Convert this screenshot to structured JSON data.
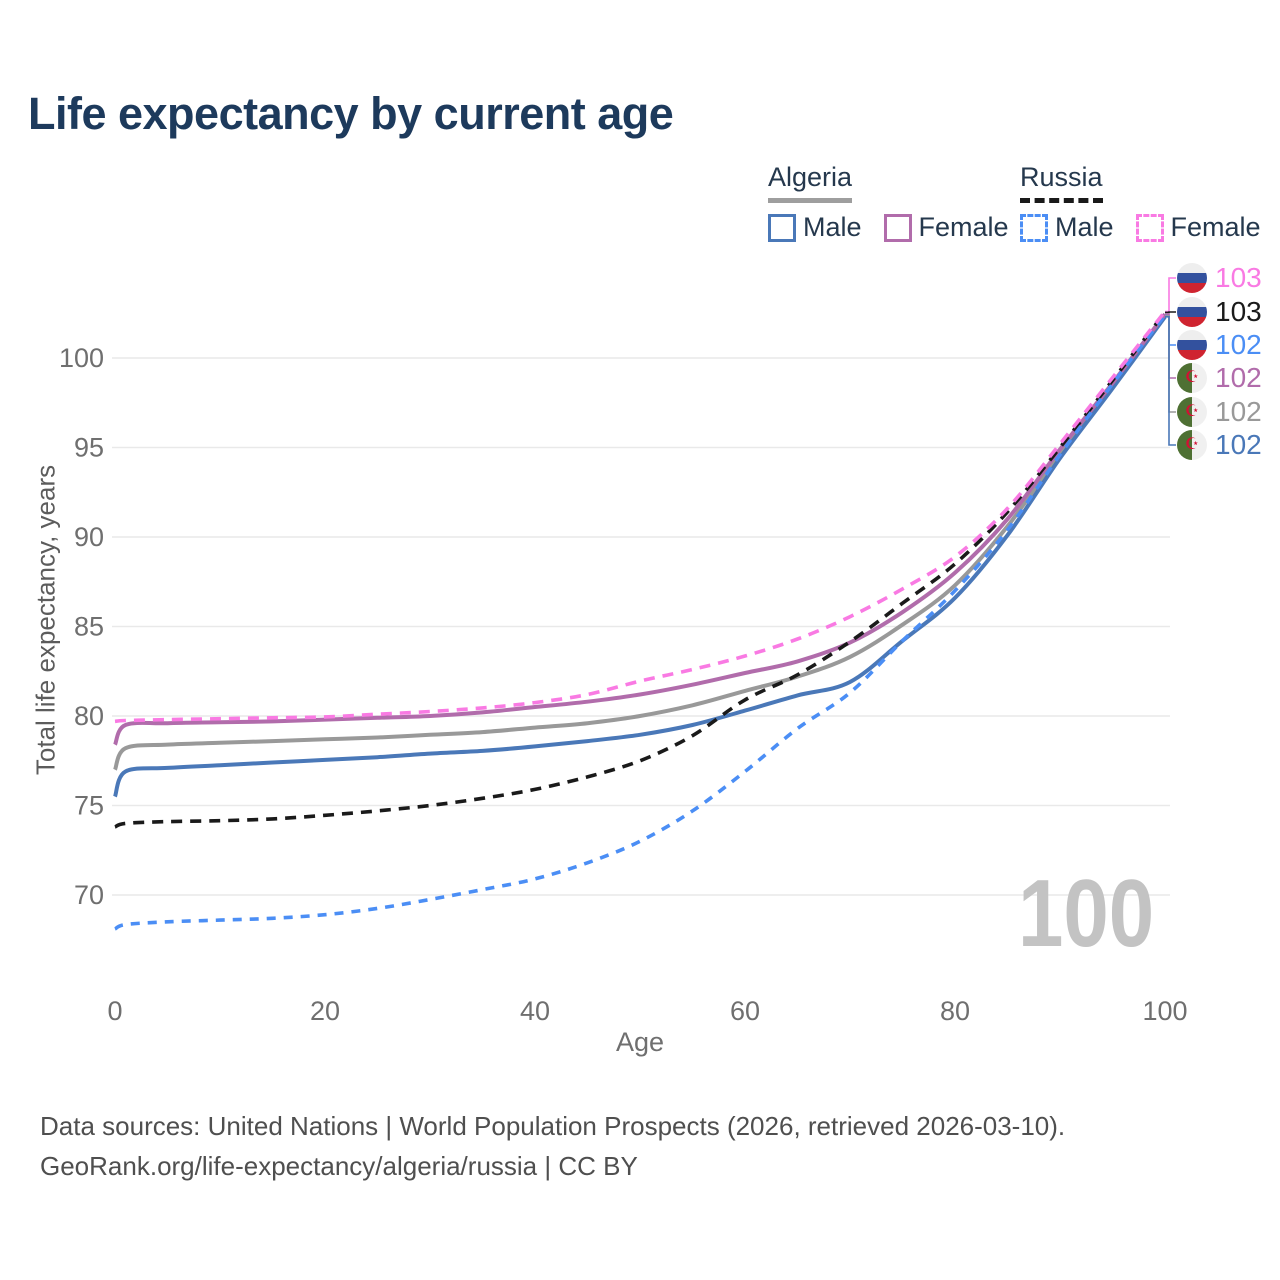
{
  "title": "Life expectancy by current age",
  "legend": {
    "groups": [
      {
        "country": "Algeria",
        "line_style": "solid",
        "underline_color": "#9e9e9e",
        "items": [
          {
            "label": "Male",
            "color": "#4a78b8",
            "dashed": false
          },
          {
            "label": "Female",
            "color": "#b16cab",
            "dashed": false
          }
        ]
      },
      {
        "country": "Russia",
        "line_style": "dashed",
        "underline_color": "#1a1a1a",
        "items": [
          {
            "label": "Male",
            "color": "#4b8ef5",
            "dashed": true
          },
          {
            "label": "Female",
            "color": "#f97ae3",
            "dashed": true
          }
        ]
      }
    ]
  },
  "chart_data": {
    "type": "line",
    "title": "Life expectancy by current age",
    "xlabel": "Age",
    "ylabel": "Total life expectancy, years",
    "xlim": [
      0,
      100
    ],
    "ylim": [
      66,
      104
    ],
    "xticks": [
      0,
      20,
      40,
      60,
      80,
      100
    ],
    "yticks": [
      70,
      75,
      80,
      85,
      90,
      95,
      100
    ],
    "grid": "horizontal-only",
    "current_age_watermark": "100",
    "x": [
      0,
      1,
      5,
      10,
      15,
      20,
      25,
      30,
      35,
      40,
      45,
      50,
      55,
      60,
      65,
      70,
      75,
      80,
      85,
      90,
      95,
      100
    ],
    "series": [
      {
        "name": "Algeria Both sexes",
        "country": "Algeria",
        "sex": "Both",
        "color": "#999999",
        "dash": null,
        "width": 4,
        "values": [
          77.0,
          78.2,
          78.4,
          78.5,
          78.6,
          78.7,
          78.8,
          78.95,
          79.1,
          79.35,
          79.6,
          80.0,
          80.6,
          81.4,
          82.2,
          83.3,
          85.1,
          87.3,
          90.6,
          94.7,
          98.5,
          102.35
        ]
      },
      {
        "name": "Algeria Male",
        "country": "Algeria",
        "sex": "Male",
        "color": "#4a78b8",
        "dash": null,
        "width": 4,
        "values": [
          75.5,
          76.9,
          77.1,
          77.25,
          77.4,
          77.55,
          77.7,
          77.9,
          78.05,
          78.3,
          78.6,
          78.95,
          79.5,
          80.3,
          81.15,
          81.9,
          84.2,
          86.6,
          90.1,
          94.4,
          98.3,
          102.3
        ]
      },
      {
        "name": "Algeria Female",
        "country": "Algeria",
        "sex": "Female",
        "color": "#b16cab",
        "dash": null,
        "width": 4,
        "values": [
          78.4,
          79.5,
          79.6,
          79.65,
          79.7,
          79.8,
          79.9,
          80.0,
          80.2,
          80.5,
          80.8,
          81.2,
          81.75,
          82.4,
          83.05,
          84.1,
          85.8,
          88.0,
          91.0,
          94.9,
          98.6,
          102.45
        ]
      },
      {
        "name": "Russia Both sexes",
        "country": "Russia",
        "sex": "Both",
        "color": "#1a1a1a",
        "dash": [
          11,
          8
        ],
        "width": 3.6,
        "values": [
          73.8,
          74.0,
          74.1,
          74.15,
          74.25,
          74.45,
          74.7,
          75.0,
          75.4,
          75.9,
          76.6,
          77.5,
          78.9,
          80.9,
          82.3,
          84.15,
          86.3,
          88.5,
          91.4,
          95.0,
          98.75,
          102.55
        ]
      },
      {
        "name": "Russia Male",
        "country": "Russia",
        "sex": "Male",
        "color": "#4b8ef5",
        "dash": [
          9,
          8
        ],
        "width": 3.6,
        "values": [
          68.1,
          68.35,
          68.5,
          68.6,
          68.7,
          68.9,
          69.25,
          69.75,
          70.3,
          70.9,
          71.8,
          73.0,
          74.7,
          76.9,
          79.3,
          81.3,
          84.2,
          87.0,
          90.4,
          94.6,
          98.55,
          102.4
        ]
      },
      {
        "name": "Russia Female",
        "country": "Russia",
        "sex": "Female",
        "color": "#f97ae3",
        "dash": [
          11,
          8
        ],
        "width": 3.6,
        "values": [
          79.7,
          79.75,
          79.8,
          79.85,
          79.9,
          79.95,
          80.1,
          80.25,
          80.45,
          80.75,
          81.2,
          81.95,
          82.6,
          83.35,
          84.3,
          85.55,
          87.1,
          88.9,
          91.6,
          95.2,
          98.9,
          102.6
        ]
      }
    ]
  },
  "end_labels": [
    {
      "value": "103",
      "flag": "russia",
      "color": "#f97ae3",
      "series": "Russia Female"
    },
    {
      "value": "103",
      "flag": "russia",
      "color": "#1a1a1a",
      "series": "Russia Both sexes"
    },
    {
      "value": "102",
      "flag": "russia",
      "color": "#4b8ef5",
      "series": "Russia Male"
    },
    {
      "value": "102",
      "flag": "algeria",
      "color": "#b16cab",
      "series": "Algeria Female"
    },
    {
      "value": "102",
      "flag": "algeria",
      "color": "#999999",
      "series": "Algeria Both sexes"
    },
    {
      "value": "102",
      "flag": "algeria",
      "color": "#4a78b8",
      "series": "Algeria Male"
    }
  ],
  "icons": {
    "russia_flag": "circle with white-blue-red horizontal stripes",
    "algeria_flag": "circle, green left half and white right half with red star-and-crescent"
  },
  "footer": {
    "line1": "Data sources: United Nations | World Population Prospects (2026, retrieved 2026-03-10).",
    "line2": "GeoRank.org/life-expectancy/algeria/russia | CC BY"
  }
}
